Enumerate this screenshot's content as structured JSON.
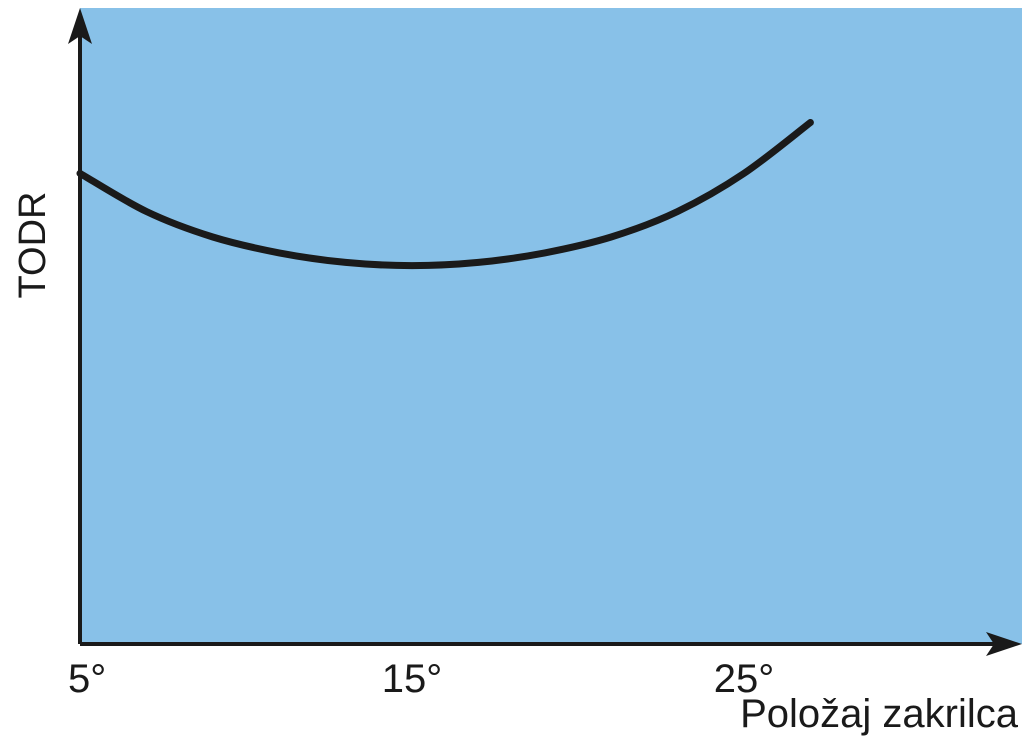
{
  "chart_data": {
    "type": "line",
    "title": "",
    "xlabel": "Položaj zakrilca",
    "ylabel": "TODR",
    "x_ticks": [
      {
        "value": 5,
        "label": "5°"
      },
      {
        "value": 15,
        "label": "15°"
      },
      {
        "value": 25,
        "label": "25°"
      }
    ],
    "xlim": [
      5,
      34
    ],
    "ylim": [
      0,
      100
    ],
    "grid": false,
    "legend": "none",
    "series": [
      {
        "x": [
          5,
          7,
          9,
          11,
          13,
          15,
          17,
          19,
          21,
          23,
          25,
          27
        ],
        "y": [
          74,
          68,
          64,
          61.5,
          60,
          59.5,
          60,
          61.5,
          64,
          68,
          74,
          82
        ]
      }
    ]
  },
  "colors": {
    "plot_background": "#88c1e8",
    "axis": "#1a1a1a",
    "line": "#1a1a1a"
  }
}
